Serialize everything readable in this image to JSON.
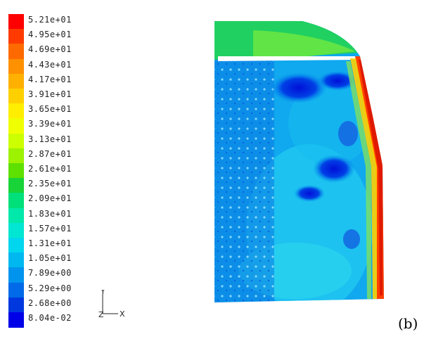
{
  "legend": {
    "levels": [
      {
        "label": "5.21e+01",
        "color": "#ff0000"
      },
      {
        "label": "4.95e+01",
        "color": "#ff3a00"
      },
      {
        "label": "4.69e+01",
        "color": "#ff6a00"
      },
      {
        "label": "4.43e+01",
        "color": "#ff9100"
      },
      {
        "label": "4.17e+01",
        "color": "#ffb000"
      },
      {
        "label": "3.91e+01",
        "color": "#ffd000"
      },
      {
        "label": "3.65e+01",
        "color": "#ffee00"
      },
      {
        "label": "3.39e+01",
        "color": "#f0ff00"
      },
      {
        "label": "3.13e+01",
        "color": "#ccff00"
      },
      {
        "label": "2.87e+01",
        "color": "#9cf200"
      },
      {
        "label": "2.61e+01",
        "color": "#5ee000"
      },
      {
        "label": "2.35e+01",
        "color": "#19d438"
      },
      {
        "label": "2.09e+01",
        "color": "#00e07a"
      },
      {
        "label": "1.83e+01",
        "color": "#00e8aa"
      },
      {
        "label": "1.57e+01",
        "color": "#00e6d2"
      },
      {
        "label": "1.31e+01",
        "color": "#00d6ee"
      },
      {
        "label": "1.05e+01",
        "color": "#00b8f0"
      },
      {
        "label": "7.89e+00",
        "color": "#0094ee"
      },
      {
        "label": "5.29e+00",
        "color": "#006ae8"
      },
      {
        "label": "2.68e+00",
        "color": "#0038e0"
      },
      {
        "label": "8.04e-02",
        "color": "#0000e8"
      }
    ]
  },
  "axes": {
    "y_label": "Y",
    "z_label": "Z",
    "x_label": "X"
  },
  "panel_label": "(b)"
}
